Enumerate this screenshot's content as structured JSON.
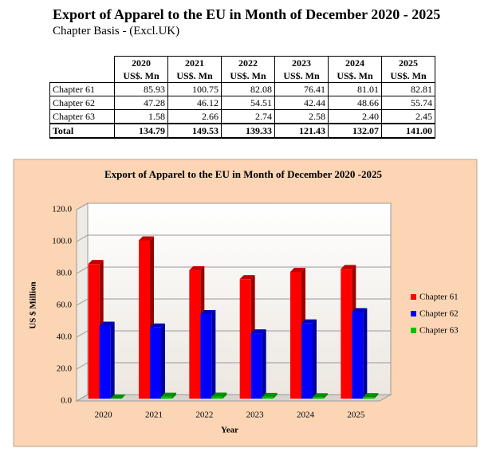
{
  "header": {
    "title": "Export of Apparel to the EU in Month of December 2020 - 2025",
    "subtitle": "Chapter Basis - (Excl.UK)"
  },
  "table": {
    "columns": [
      "2020",
      "2021",
      "2022",
      "2023",
      "2024",
      "2025"
    ],
    "units": [
      "US$. Mn",
      "US$. Mn",
      "US$. Mn",
      "US$. Mn",
      "US$. Mn",
      "US$. Mn"
    ],
    "rows": [
      {
        "label": "Chapter 61",
        "cells": [
          "85.93",
          "100.75",
          "82.08",
          "76.41",
          "81.01",
          "82.81"
        ]
      },
      {
        "label": "Chapter 62",
        "cells": [
          "47.28",
          "46.12",
          "54.51",
          "42.44",
          "48.66",
          "55.74"
        ]
      },
      {
        "label": "Chapter 63",
        "cells": [
          "1.58",
          "2.66",
          "2.74",
          "2.58",
          "2.40",
          "2.45"
        ]
      },
      {
        "label": "Total",
        "cells": [
          "134.79",
          "149.53",
          "139.33",
          "121.43",
          "132.07",
          "141.00"
        ]
      }
    ]
  },
  "chart_data": {
    "type": "bar",
    "title": "Export of Apparel to the EU in Month of December 2020 -2025",
    "x_label": "Year",
    "y_label": "US $ Million",
    "categories": [
      "2020",
      "2021",
      "2022",
      "2023",
      "2024",
      "2025"
    ],
    "series": [
      {
        "name": "Chapter 61",
        "color": "#ff0000",
        "values": [
          85.93,
          100.75,
          82.08,
          76.41,
          81.01,
          82.81
        ]
      },
      {
        "name": "Chapter 62",
        "color": "#0000ff",
        "values": [
          47.28,
          46.12,
          54.51,
          42.44,
          48.66,
          55.74
        ]
      },
      {
        "name": "Chapter 63",
        "color": "#00c000",
        "values": [
          1.58,
          2.66,
          2.74,
          2.58,
          2.4,
          2.45
        ]
      }
    ],
    "ylim": [
      0,
      120
    ],
    "yticks": [
      {
        "value": 0,
        "label": "0.0"
      },
      {
        "value": 20,
        "label": "20.0"
      },
      {
        "value": 40,
        "label": "40.0"
      },
      {
        "value": 60,
        "label": "60.0"
      },
      {
        "value": 80,
        "label": "80.0"
      },
      {
        "value": 100,
        "label": "100.0"
      },
      {
        "value": 120,
        "label": "120.0"
      }
    ],
    "grid": true,
    "legend": "right"
  }
}
